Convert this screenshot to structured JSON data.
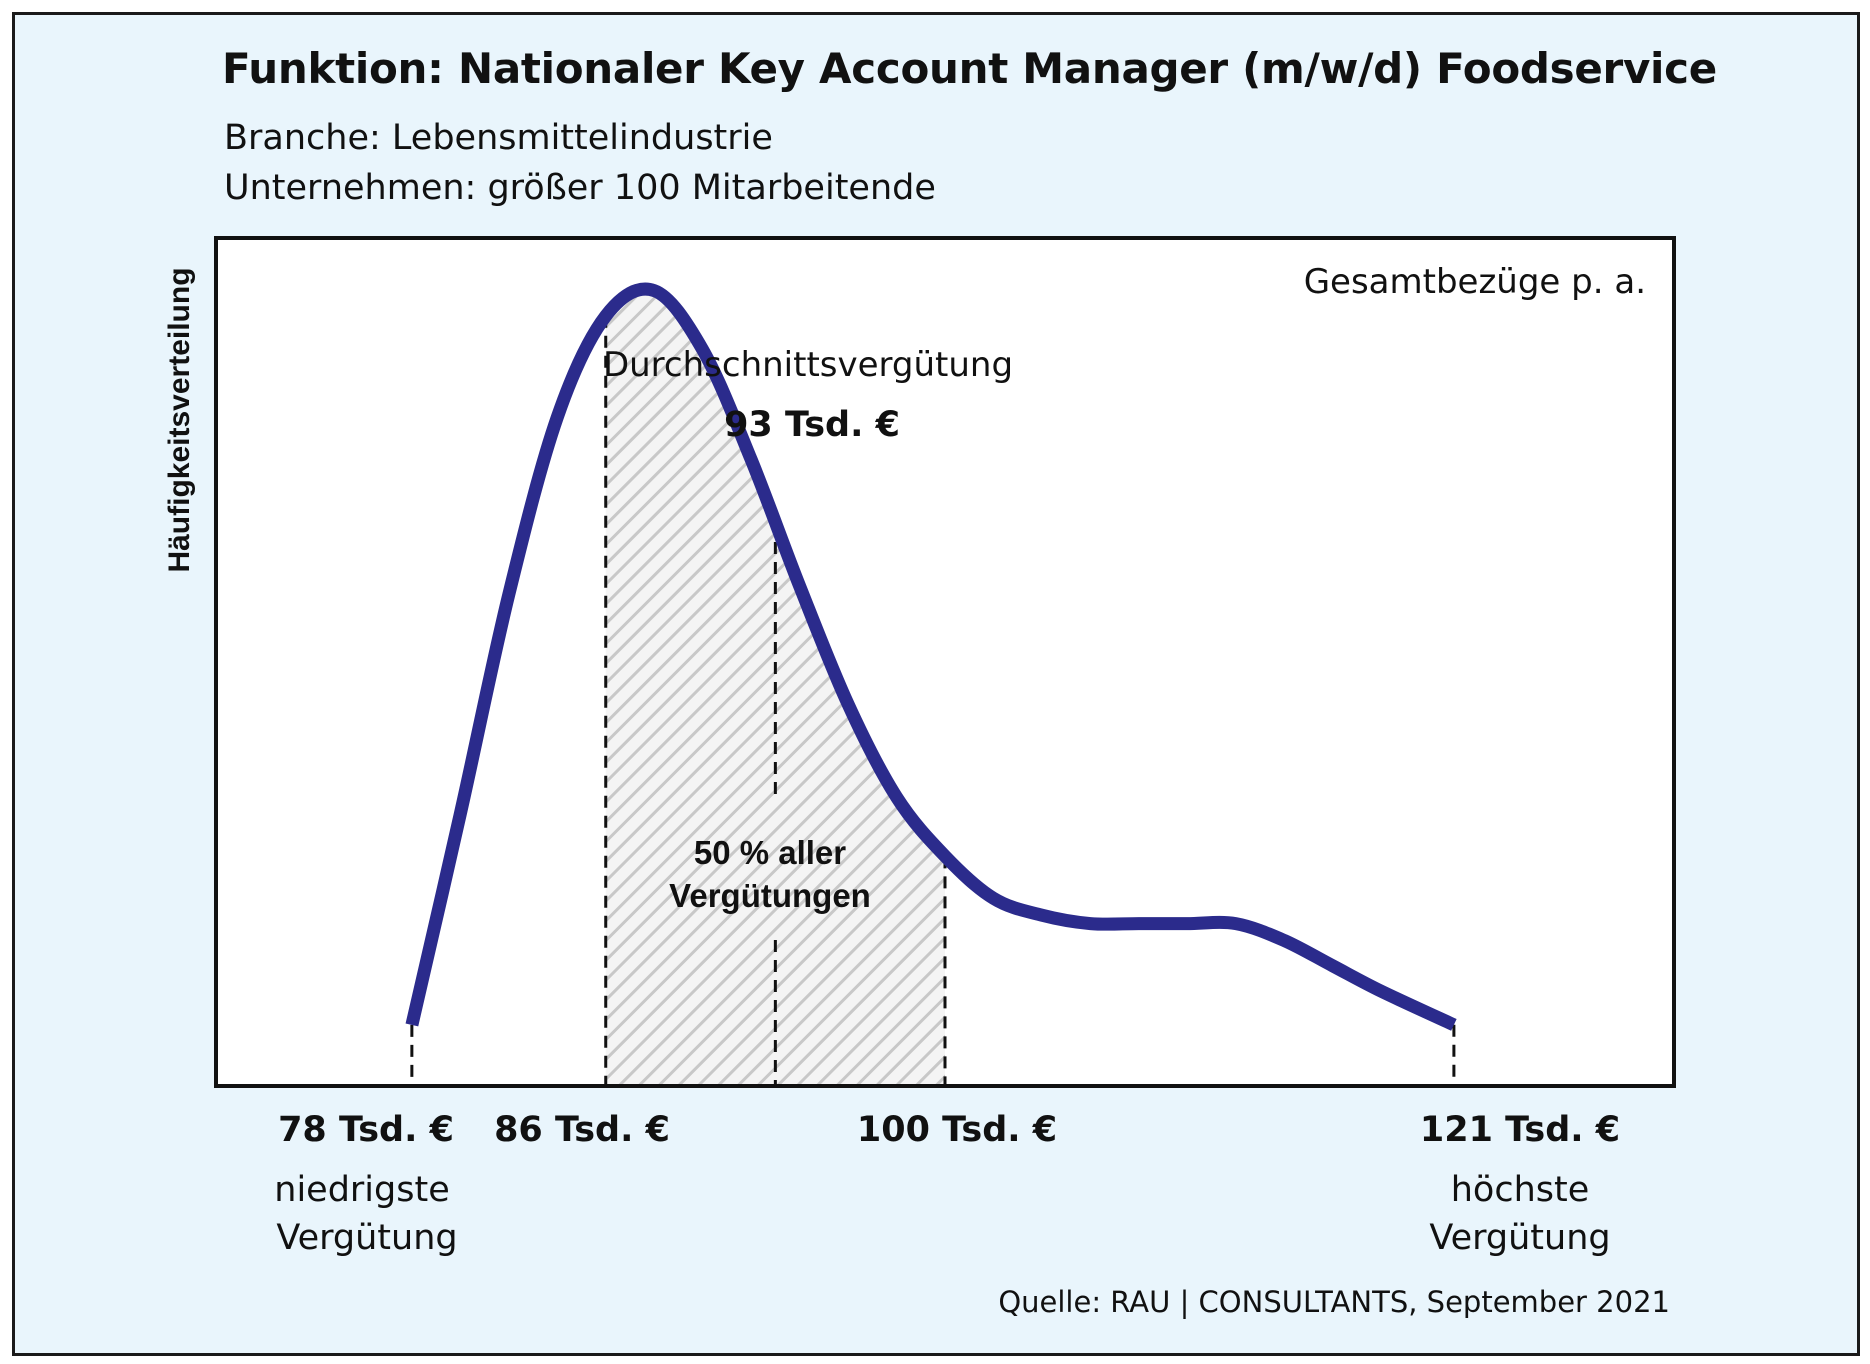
{
  "header": {
    "title": "Funktion: Nationaler Key Account Manager (m/w/d) Foodservice",
    "branch": "Branche: Lebensmittelindustrie",
    "company": "Unternehmen: größer 100 Mitarbeitende"
  },
  "chart_data": {
    "type": "area",
    "title": "Funktion: Nationaler Key Account Manager (m/w/d) Foodservice",
    "ylabel": "Häufigkeitsverteilung",
    "xlabel": "Gesamtbezüge p. a.",
    "xlim": [
      70,
      130
    ],
    "ylim": [
      0,
      1
    ],
    "series": [
      {
        "x": [
          78,
          80,
          82,
          84,
          86,
          88,
          90,
          92,
          94,
          96,
          98,
          100,
          102,
          104,
          106,
          108,
          110,
          112,
          114,
          116,
          118,
          121
        ],
        "y": [
          0.07,
          0.32,
          0.58,
          0.79,
          0.91,
          0.94,
          0.87,
          0.74,
          0.59,
          0.45,
          0.34,
          0.27,
          0.22,
          0.2,
          0.19,
          0.19,
          0.19,
          0.19,
          0.17,
          0.14,
          0.11,
          0.07
        ]
      }
    ],
    "shaded_range": [
      86,
      100
    ],
    "markers": [
      {
        "value": 78,
        "label": "78 Tsd. €",
        "description": "niedrigste Vergütung"
      },
      {
        "value": 86,
        "label": "86 Tsd. €"
      },
      {
        "value": 93,
        "label": "93 Tsd. €",
        "description": "Durchschnittsvergütung"
      },
      {
        "value": 100,
        "label": "100 Tsd. €"
      },
      {
        "value": 121,
        "label": "121 Tsd. €",
        "description": "höchste Vergütung"
      }
    ],
    "annotation": "50 % aller Vergütungen",
    "grid": false,
    "colors": {
      "line": "#2b2b8c",
      "hatch": "#c8c8c8",
      "background": "#e9f5fc",
      "plot": "#ffffff"
    }
  },
  "labels": {
    "total_comp": "Gesamtbezüge p. a.",
    "avg_title": "Durchschnittsvergütung",
    "avg_value": "93 Tsd. €",
    "share_line1": "50 % aller",
    "share_line2": "Vergütungen",
    "min_value": "78 Tsd. €",
    "min_desc_1": "niedrigste",
    "min_desc_2": "Vergütung",
    "q1_value": "86 Tsd. €",
    "q3_value": "100 Tsd. €",
    "max_value": "121 Tsd. €",
    "max_desc_1": "höchste",
    "max_desc_2": "Vergütung"
  },
  "source": "Quelle: RAU | CONSULTANTS, September 2021"
}
